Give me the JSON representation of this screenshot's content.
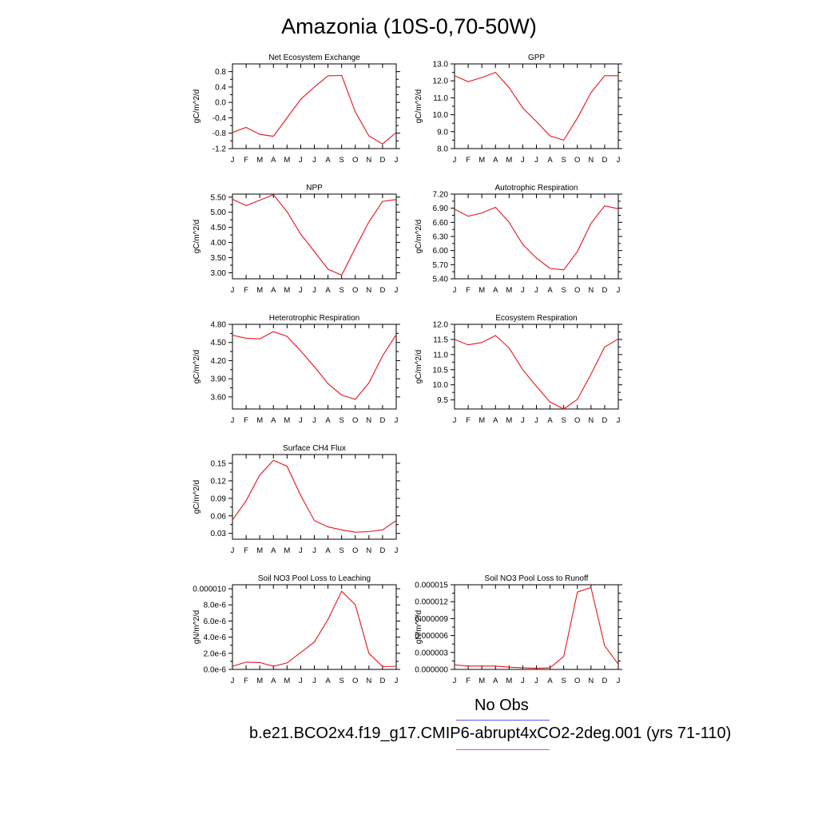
{
  "title": "Amazonia (10S-0,70-50W)",
  "legend": {
    "obs_label": "No Obs",
    "obs_color": "#5a5af0",
    "model_label": "b.e21.BCO2x4.f19_g17.CMIP6-abrupt4xCO2-2deg.001 (yrs 71-110)",
    "model_color": "#f05a5a"
  },
  "chart_data": [
    {
      "type": "line",
      "title": "Net Ecosystem Exchange",
      "ylabel": "gC/m^2/d",
      "categories": [
        "J",
        "F",
        "M",
        "A",
        "M",
        "J",
        "J",
        "A",
        "S",
        "O",
        "N",
        "D",
        "J"
      ],
      "ylim": [
        -1.2,
        1.0
      ],
      "yticks": [
        "0.8",
        "0.4",
        "0.0",
        "-0.4",
        "-0.8",
        "-1.2"
      ],
      "ytick_values": [
        0.8,
        0.4,
        0.0,
        -0.4,
        -0.8,
        -1.2
      ],
      "series": [
        {
          "values": [
            -0.78,
            -0.65,
            -0.83,
            -0.88,
            -0.4,
            0.08,
            0.4,
            0.69,
            0.7,
            -0.25,
            -0.87,
            -1.08,
            -0.78
          ],
          "color": "#e8141d"
        }
      ]
    },
    {
      "type": "line",
      "title": "GPP",
      "ylabel": "gC/m^2/d",
      "categories": [
        "J",
        "F",
        "M",
        "A",
        "M",
        "J",
        "J",
        "A",
        "S",
        "O",
        "N",
        "D",
        "J"
      ],
      "ylim": [
        8.0,
        13.0
      ],
      "yticks": [
        "13.0",
        "12.0",
        "11.0",
        "10.0",
        "9.0",
        "8.0"
      ],
      "ytick_values": [
        13.0,
        12.0,
        11.0,
        10.0,
        9.0,
        8.0
      ],
      "series": [
        {
          "values": [
            12.3,
            11.95,
            12.2,
            12.5,
            11.6,
            10.4,
            9.6,
            8.75,
            8.5,
            9.8,
            11.3,
            12.3,
            12.3
          ],
          "color": "#e8141d"
        }
      ]
    },
    {
      "type": "line",
      "title": "NPP",
      "ylabel": "gC/m^2/d",
      "categories": [
        "J",
        "F",
        "M",
        "A",
        "M",
        "J",
        "J",
        "A",
        "S",
        "O",
        "N",
        "D",
        "J"
      ],
      "ylim": [
        2.8,
        5.6
      ],
      "yticks": [
        "5.50",
        "5.00",
        "4.50",
        "4.00",
        "3.50",
        "3.00"
      ],
      "ytick_values": [
        5.5,
        5.0,
        4.5,
        4.0,
        3.5,
        3.0
      ],
      "series": [
        {
          "values": [
            5.43,
            5.22,
            5.4,
            5.58,
            5.02,
            4.28,
            3.7,
            3.12,
            2.92,
            3.82,
            4.68,
            5.36,
            5.42
          ],
          "color": "#e8141d"
        }
      ]
    },
    {
      "type": "line",
      "title": "Autotrophic Respiration",
      "ylabel": "gC/m^2/d",
      "categories": [
        "J",
        "F",
        "M",
        "A",
        "M",
        "J",
        "J",
        "A",
        "S",
        "O",
        "N",
        "D",
        "J"
      ],
      "ylim": [
        5.4,
        7.2
      ],
      "yticks": [
        "7.20",
        "6.90",
        "6.60",
        "6.30",
        "6.00",
        "5.70",
        "5.40"
      ],
      "ytick_values": [
        7.2,
        6.9,
        6.6,
        6.3,
        6.0,
        5.7,
        5.4
      ],
      "series": [
        {
          "values": [
            6.88,
            6.73,
            6.8,
            6.92,
            6.6,
            6.13,
            5.84,
            5.62,
            5.59,
            5.98,
            6.58,
            6.95,
            6.89
          ],
          "color": "#e8141d"
        }
      ]
    },
    {
      "type": "line",
      "title": "Heterotrophic Respiration",
      "ylabel": "gC/m^2/d",
      "categories": [
        "J",
        "F",
        "M",
        "A",
        "M",
        "J",
        "J",
        "A",
        "S",
        "O",
        "N",
        "D",
        "J"
      ],
      "ylim": [
        3.4,
        4.8
      ],
      "yticks": [
        "4.80",
        "4.50",
        "4.20",
        "3.90",
        "3.60"
      ],
      "ytick_values": [
        4.8,
        4.5,
        4.2,
        3.9,
        3.6
      ],
      "series": [
        {
          "values": [
            4.62,
            4.57,
            4.56,
            4.68,
            4.6,
            4.36,
            4.1,
            3.82,
            3.63,
            3.56,
            3.83,
            4.28,
            4.63
          ],
          "color": "#e8141d"
        }
      ]
    },
    {
      "type": "line",
      "title": "Ecosystem Respiration",
      "ylabel": "gC/m^2/d",
      "categories": [
        "J",
        "F",
        "M",
        "A",
        "M",
        "J",
        "J",
        "A",
        "S",
        "O",
        "N",
        "D",
        "J"
      ],
      "ylim": [
        9.2,
        12.0
      ],
      "yticks": [
        "12.0",
        "11.5",
        "11.0",
        "10.5",
        "10.0",
        "9.5"
      ],
      "ytick_values": [
        12.0,
        11.5,
        11.0,
        10.5,
        10.0,
        9.5
      ],
      "series": [
        {
          "values": [
            11.5,
            11.32,
            11.4,
            11.63,
            11.22,
            10.5,
            9.95,
            9.43,
            9.2,
            9.52,
            10.35,
            11.25,
            11.52
          ],
          "color": "#e8141d"
        }
      ]
    },
    {
      "type": "line",
      "title": "Surface CH4 Flux",
      "ylabel": "gC/m^2/d",
      "categories": [
        "J",
        "F",
        "M",
        "A",
        "M",
        "J",
        "J",
        "A",
        "S",
        "O",
        "N",
        "D",
        "J"
      ],
      "ylim": [
        0.02,
        0.165
      ],
      "yticks": [
        "0.15",
        "0.12",
        "0.09",
        "0.06",
        "0.03"
      ],
      "ytick_values": [
        0.15,
        0.12,
        0.09,
        0.06,
        0.03
      ],
      "series": [
        {
          "values": [
            0.053,
            0.086,
            0.13,
            0.155,
            0.145,
            0.095,
            0.052,
            0.041,
            0.036,
            0.032,
            0.033,
            0.036,
            0.052
          ],
          "color": "#e8141d"
        }
      ]
    },
    {
      "type": "line",
      "title": "Soil NO3 Pool Loss to Leaching",
      "ylabel": "gN/m^2/d",
      "categories": [
        "J",
        "F",
        "M",
        "A",
        "M",
        "J",
        "J",
        "A",
        "S",
        "O",
        "N",
        "D",
        "J"
      ],
      "ylim": [
        0.0,
        1.05e-05
      ],
      "yticks": [
        "0.000010",
        "8.0e-6",
        "6.0e-6",
        "4.0e-6",
        "2.0e-6",
        "0.0e-6"
      ],
      "ytick_values": [
        1e-05,
        8e-06,
        6e-06,
        4e-06,
        2e-06,
        0.0
      ],
      "series": [
        {
          "values": [
            4e-07,
            9e-07,
            8.5e-07,
            4e-07,
            8e-07,
            2.1e-06,
            3.4e-06,
            6.2e-06,
            9.7e-06,
            8e-06,
            2e-06,
            3.5e-07,
            4e-07
          ],
          "color": "#e8141d"
        }
      ]
    },
    {
      "type": "line",
      "title": "Soil NO3 Pool Loss to Runoff",
      "ylabel": "gN/m^2/d",
      "categories": [
        "J",
        "F",
        "M",
        "A",
        "M",
        "J",
        "J",
        "A",
        "S",
        "O",
        "N",
        "D",
        "J"
      ],
      "ylim": [
        0.0,
        1.5e-05
      ],
      "yticks": [
        "0.000015",
        "0.000012",
        "0.000009",
        "0.000006",
        "0.000003",
        "0.000000"
      ],
      "ytick_values": [
        1.5e-05,
        1.2e-05,
        9e-06,
        6e-06,
        3e-06,
        0.0
      ],
      "series": [
        {
          "values": [
            8e-07,
            6e-07,
            6e-07,
            6e-07,
            4e-07,
            3e-07,
            2e-07,
            3e-07,
            2.3e-06,
            1.37e-05,
            1.45e-05,
            4.2e-06,
            9e-07
          ],
          "color": "#e8141d"
        }
      ]
    }
  ]
}
